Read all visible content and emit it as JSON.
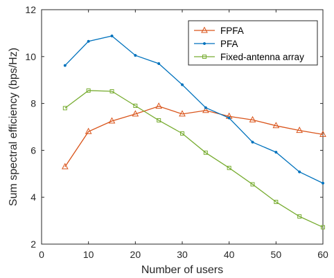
{
  "chart_data": {
    "type": "line",
    "title": "",
    "xlabel": "Number of users",
    "ylabel": "Sum spectral efficiency (bps/Hz)",
    "xlim": [
      0,
      60
    ],
    "ylim": [
      2,
      12
    ],
    "xticks": [
      0,
      10,
      20,
      30,
      40,
      50,
      60
    ],
    "yticks": [
      2,
      4,
      6,
      8,
      10,
      12
    ],
    "grid": false,
    "legend_position": "top-right",
    "x": [
      5,
      10,
      15,
      20,
      25,
      30,
      35,
      40,
      45,
      50,
      55,
      60
    ],
    "series": [
      {
        "name": "FPFA",
        "color": "#d95319",
        "marker": "triangle",
        "values": [
          5.3,
          6.8,
          7.25,
          7.55,
          7.88,
          7.55,
          7.7,
          7.45,
          7.3,
          7.05,
          6.85,
          6.68
        ]
      },
      {
        "name": "PFA",
        "color": "#0072bd",
        "marker": "dot",
        "values": [
          9.62,
          10.65,
          10.88,
          10.05,
          9.7,
          8.8,
          7.82,
          7.38,
          6.35,
          5.92,
          5.08,
          4.6
        ]
      },
      {
        "name": "Fixed-antenna array",
        "color": "#77ac30",
        "marker": "square",
        "values": [
          7.8,
          8.55,
          8.52,
          7.9,
          7.28,
          6.72,
          5.9,
          5.25,
          4.55,
          3.8,
          3.18,
          2.72
        ]
      }
    ]
  }
}
